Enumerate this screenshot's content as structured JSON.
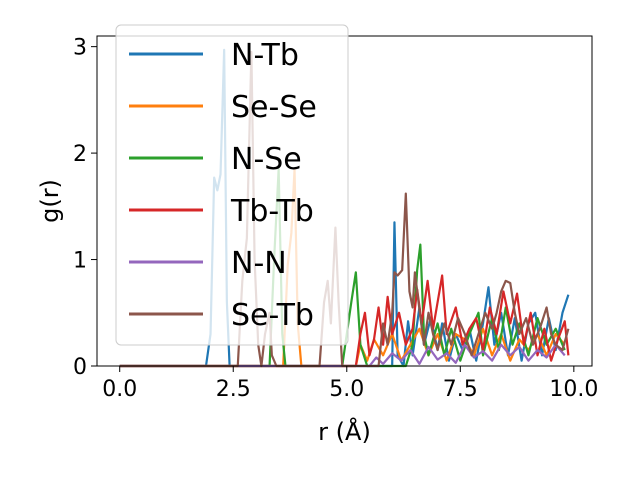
{
  "chart_data": {
    "type": "line",
    "xlabel": "r (Å)",
    "ylabel": "g(r)",
    "xlim": [
      -0.5,
      10.4
    ],
    "ylim": [
      0,
      3.1
    ],
    "xticks": [
      0.0,
      2.5,
      5.0,
      7.5,
      10.0
    ],
    "xtick_labels": [
      "0.0",
      "2.5",
      "5.0",
      "7.5",
      "10.0"
    ],
    "yticks": [
      0,
      1,
      2,
      3
    ],
    "ytick_labels": [
      "0",
      "1",
      "2",
      "3"
    ],
    "grid": false,
    "legend_position": "upper-left",
    "series": [
      {
        "name": "N-Tb",
        "color": "#1f77b4",
        "points": [
          [
            0,
            0
          ],
          [
            1.9,
            0
          ],
          [
            2.0,
            0.3
          ],
          [
            2.08,
            1.77
          ],
          [
            2.15,
            1.65
          ],
          [
            2.22,
            1.8
          ],
          [
            2.3,
            2.97
          ],
          [
            2.36,
            0.6
          ],
          [
            2.42,
            0
          ],
          [
            6.0,
            0
          ],
          [
            6.05,
            1.35
          ],
          [
            6.12,
            0.1
          ],
          [
            6.25,
            0
          ],
          [
            6.35,
            0.42
          ],
          [
            6.45,
            0.1
          ],
          [
            6.6,
            0.55
          ],
          [
            6.7,
            0.2
          ],
          [
            6.85,
            0.45
          ],
          [
            7.0,
            0.15
          ],
          [
            7.1,
            0.4
          ],
          [
            7.25,
            0.05
          ],
          [
            7.4,
            0.3
          ],
          [
            7.55,
            0.15
          ],
          [
            7.7,
            0.35
          ],
          [
            7.85,
            0.05
          ],
          [
            8.0,
            0.4
          ],
          [
            8.12,
            0.74
          ],
          [
            8.25,
            0.2
          ],
          [
            8.4,
            0.5
          ],
          [
            8.55,
            0.1
          ],
          [
            8.7,
            0.45
          ],
          [
            8.85,
            0.05
          ],
          [
            9.0,
            0.4
          ],
          [
            9.15,
            0.5
          ],
          [
            9.3,
            0.1
          ],
          [
            9.45,
            0.45
          ],
          [
            9.6,
            0.15
          ],
          [
            9.75,
            0.5
          ],
          [
            9.88,
            0.67
          ]
        ]
      },
      {
        "name": "Se-Se",
        "color": "#ff7f0e",
        "points": [
          [
            0,
            0
          ],
          [
            3.6,
            0
          ],
          [
            3.7,
            0.95
          ],
          [
            3.78,
            1.25
          ],
          [
            3.85,
            1.85
          ],
          [
            3.92,
            0.4
          ],
          [
            4.0,
            0
          ],
          [
            5.2,
            0
          ],
          [
            5.3,
            0.2
          ],
          [
            5.45,
            0.05
          ],
          [
            5.6,
            0.25
          ],
          [
            5.8,
            0.1
          ],
          [
            6.0,
            0.3
          ],
          [
            6.2,
            0.05
          ],
          [
            6.4,
            0.2
          ],
          [
            6.6,
            0.35
          ],
          [
            6.8,
            0.1
          ],
          [
            7.0,
            0.3
          ],
          [
            7.2,
            0.05
          ],
          [
            7.4,
            0.3
          ],
          [
            7.6,
            0.25
          ],
          [
            7.8,
            0.1
          ],
          [
            8.0,
            0.35
          ],
          [
            8.2,
            0.1
          ],
          [
            8.4,
            0.3
          ],
          [
            8.6,
            0.05
          ],
          [
            8.8,
            0.25
          ],
          [
            9.0,
            0.15
          ],
          [
            9.2,
            0.3
          ],
          [
            9.4,
            0.1
          ],
          [
            9.6,
            0.3
          ],
          [
            9.8,
            0.2
          ]
        ]
      },
      {
        "name": "N-Se",
        "color": "#2ca02c",
        "points": [
          [
            0,
            0
          ],
          [
            3.3,
            0
          ],
          [
            3.4,
            1.0
          ],
          [
            3.5,
            1.85
          ],
          [
            3.58,
            0.3
          ],
          [
            3.65,
            0
          ],
          [
            4.9,
            0
          ],
          [
            5.0,
            0.3
          ],
          [
            5.1,
            0.6
          ],
          [
            5.2,
            0.88
          ],
          [
            5.3,
            0.2
          ],
          [
            5.45,
            0
          ],
          [
            6.3,
            0
          ],
          [
            6.45,
            0.2
          ],
          [
            6.55,
            0.9
          ],
          [
            6.62,
            1.14
          ],
          [
            6.7,
            0.3
          ],
          [
            6.8,
            0.1
          ],
          [
            7.0,
            0.4
          ],
          [
            7.15,
            0.1
          ],
          [
            7.3,
            0.35
          ],
          [
            7.5,
            0.05
          ],
          [
            7.7,
            0.3
          ],
          [
            7.9,
            0.5
          ],
          [
            8.0,
            0.1
          ],
          [
            8.2,
            0.45
          ],
          [
            8.35,
            0.15
          ],
          [
            8.5,
            0.55
          ],
          [
            8.65,
            0.2
          ],
          [
            8.8,
            0.4
          ],
          [
            9.0,
            0.1
          ],
          [
            9.2,
            0.45
          ],
          [
            9.4,
            0.2
          ],
          [
            9.6,
            0.35
          ],
          [
            9.8,
            0.15
          ]
        ]
      },
      {
        "name": "Tb-Tb",
        "color": "#d62728",
        "points": [
          [
            0,
            0
          ],
          [
            5.2,
            0
          ],
          [
            5.3,
            0.3
          ],
          [
            5.4,
            0.5
          ],
          [
            5.5,
            0.1
          ],
          [
            5.6,
            0.25
          ],
          [
            5.7,
            0.55
          ],
          [
            5.8,
            0.2
          ],
          [
            5.9,
            0.65
          ],
          [
            6.0,
            0.3
          ],
          [
            6.15,
            0.5
          ],
          [
            6.3,
            0.2
          ],
          [
            6.45,
            0.35
          ],
          [
            6.55,
            0.72
          ],
          [
            6.65,
            0.4
          ],
          [
            6.78,
            0.8
          ],
          [
            6.9,
            0.35
          ],
          [
            7.0,
            0.6
          ],
          [
            7.1,
            0.85
          ],
          [
            7.2,
            0.3
          ],
          [
            7.4,
            0.55
          ],
          [
            7.55,
            0.2
          ],
          [
            7.7,
            0.35
          ],
          [
            7.85,
            0.45
          ],
          [
            8.0,
            0.15
          ],
          [
            8.15,
            0.55
          ],
          [
            8.3,
            0.3
          ],
          [
            8.45,
            0.7
          ],
          [
            8.6,
            0.4
          ],
          [
            8.75,
            0.68
          ],
          [
            8.9,
            0.2
          ],
          [
            9.05,
            0.5
          ],
          [
            9.2,
            0.1
          ],
          [
            9.35,
            0.35
          ],
          [
            9.5,
            0.05
          ],
          [
            9.65,
            0.25
          ],
          [
            9.8,
            0.42
          ],
          [
            9.88,
            0.1
          ]
        ]
      },
      {
        "name": "N-N",
        "color": "#9467bd",
        "points": [
          [
            0,
            0
          ],
          [
            5.5,
            0
          ],
          [
            5.65,
            0.08
          ],
          [
            5.8,
            0.02
          ],
          [
            6.0,
            0.12
          ],
          [
            6.2,
            0.05
          ],
          [
            6.4,
            0.15
          ],
          [
            6.6,
            0.02
          ],
          [
            6.8,
            0.18
          ],
          [
            7.0,
            0.06
          ],
          [
            7.2,
            0.12
          ],
          [
            7.4,
            0.03
          ],
          [
            7.6,
            0.2
          ],
          [
            7.8,
            0.08
          ],
          [
            8.0,
            0.14
          ],
          [
            8.2,
            0.05
          ],
          [
            8.4,
            0.2
          ],
          [
            8.6,
            0.1
          ],
          [
            8.8,
            0.18
          ],
          [
            9.0,
            0.05
          ],
          [
            9.2,
            0.15
          ],
          [
            9.4,
            0.08
          ],
          [
            9.6,
            0.2
          ],
          [
            9.8,
            0.1
          ]
        ]
      },
      {
        "name": "Se-Tb",
        "color": "#8c564b",
        "points": [
          [
            0,
            0
          ],
          [
            2.6,
            0
          ],
          [
            2.7,
            0.8
          ],
          [
            2.8,
            1.2
          ],
          [
            2.9,
            2.95
          ],
          [
            2.97,
            1.0
          ],
          [
            3.05,
            0.2
          ],
          [
            3.12,
            0
          ],
          [
            3.2,
            0.3
          ],
          [
            3.3,
            0.5
          ],
          [
            3.35,
            0.1
          ],
          [
            3.45,
            0
          ],
          [
            4.4,
            0
          ],
          [
            4.5,
            0.6
          ],
          [
            4.58,
            0.8
          ],
          [
            4.65,
            0.4
          ],
          [
            4.75,
            1.3
          ],
          [
            4.82,
            0.6
          ],
          [
            4.9,
            0
          ],
          [
            5.7,
            0
          ],
          [
            5.8,
            0.4
          ],
          [
            5.9,
            0.2
          ],
          [
            6.0,
            0.5
          ],
          [
            6.05,
            0.88
          ],
          [
            6.12,
            0.85
          ],
          [
            6.22,
            0.9
          ],
          [
            6.3,
            1.62
          ],
          [
            6.38,
            0.7
          ],
          [
            6.45,
            0.55
          ],
          [
            6.5,
            0.88
          ],
          [
            6.58,
            0.6
          ],
          [
            6.7,
            0.2
          ],
          [
            6.8,
            0.5
          ],
          [
            6.9,
            0.3
          ],
          [
            7.0,
            0.15
          ],
          [
            7.15,
            0.4
          ],
          [
            7.3,
            0.2
          ],
          [
            7.45,
            0.45
          ],
          [
            7.6,
            0.3
          ],
          [
            7.75,
            0.1
          ],
          [
            7.9,
            0.3
          ],
          [
            8.05,
            0.5
          ],
          [
            8.2,
            0.35
          ],
          [
            8.3,
            0.5
          ],
          [
            8.4,
            0.7
          ],
          [
            8.5,
            0.8
          ],
          [
            8.6,
            0.78
          ],
          [
            8.7,
            0.5
          ],
          [
            8.8,
            0.3
          ],
          [
            8.95,
            0.45
          ],
          [
            9.1,
            0.2
          ],
          [
            9.25,
            0.35
          ],
          [
            9.4,
            0.55
          ],
          [
            9.5,
            0.3
          ],
          [
            9.6,
            0.2
          ],
          [
            9.75,
            0.15
          ],
          [
            9.88,
            0.35
          ]
        ]
      }
    ]
  }
}
